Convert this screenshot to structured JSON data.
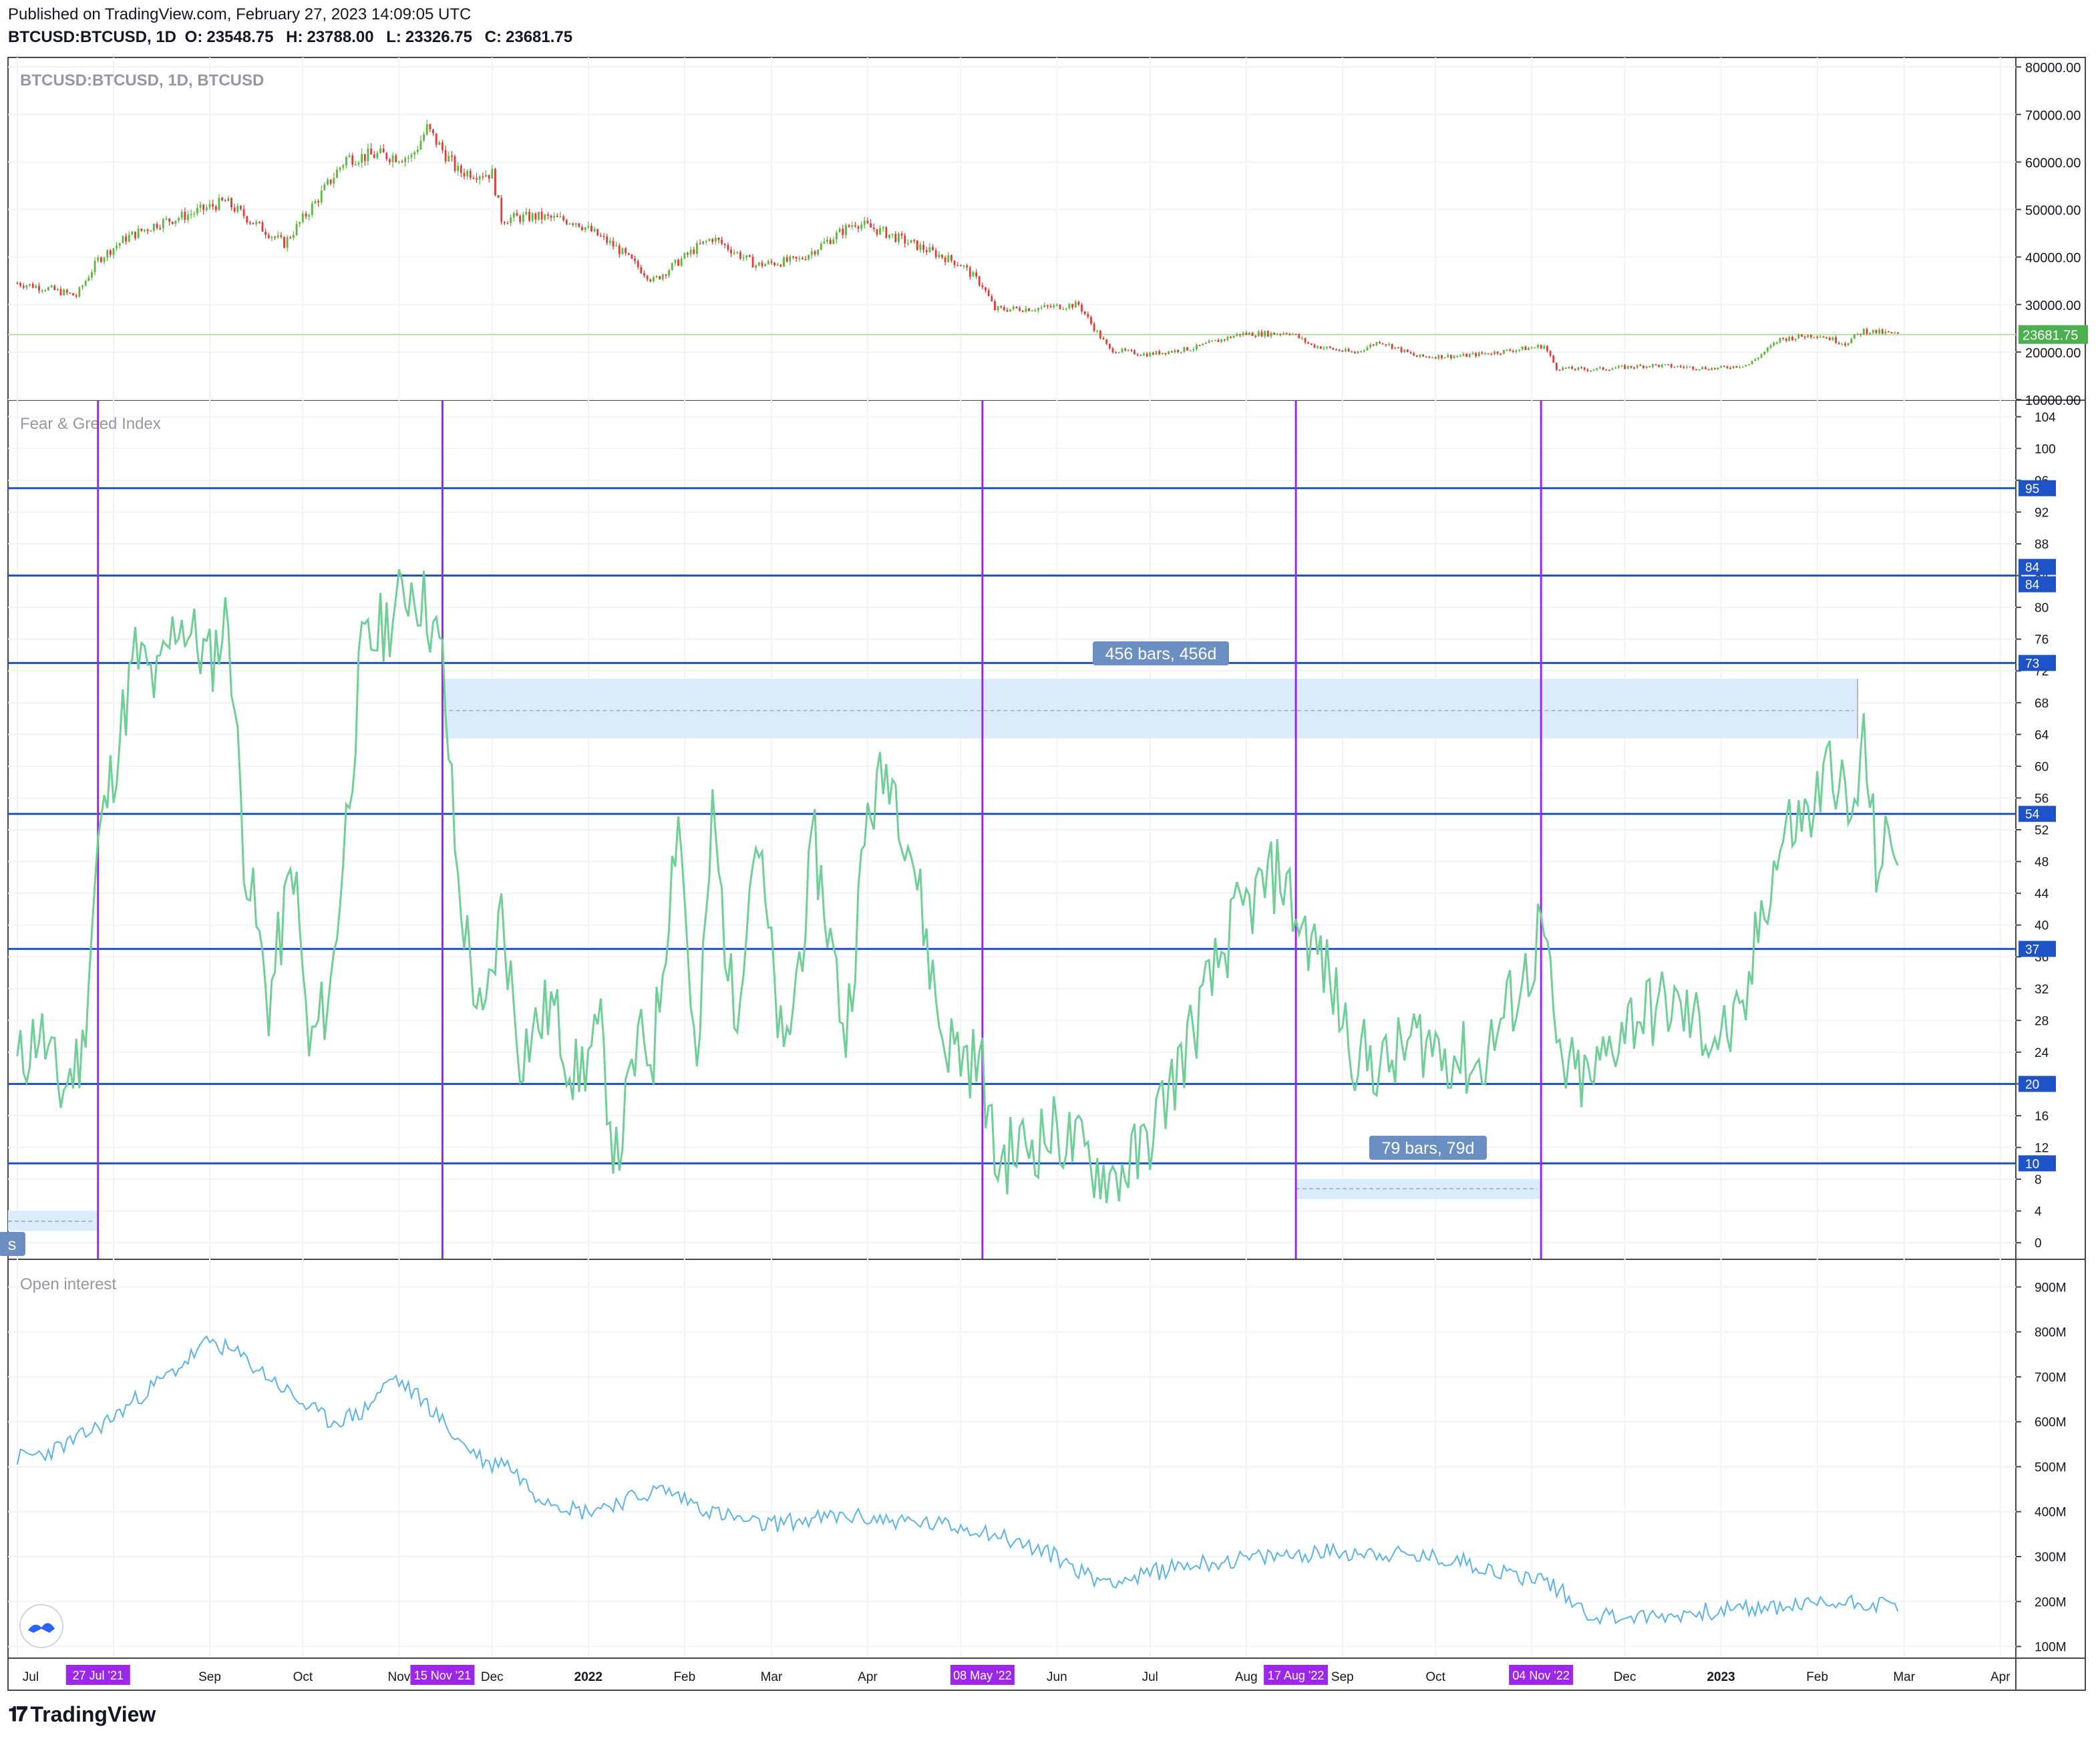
{
  "header": {
    "published": "Published on TradingView.com, February 27, 2023 14:09:05 UTC",
    "symbol": "BTCUSD:BTCUSD, 1D",
    "o_label": "O:",
    "o": "23548.75",
    "h_label": "H:",
    "h": "23788.00",
    "l_label": "L:",
    "l": "23326.75",
    "c_label": "C:",
    "c": "23681.75"
  },
  "footer": {
    "brand": "TradingView"
  },
  "colors": {
    "up": "#5cb838",
    "down": "#e53935",
    "fg": "#6fcf97",
    "oi": "#5ab4e8",
    "level": "#1e53c8",
    "vline": "#9c27e8",
    "range": "#dcebfb",
    "label": "#6b8fc2",
    "last": "#4caf50"
  },
  "chart_data": [
    {
      "type": "candlestick",
      "title": "BTCUSD:BTCUSD, 1D, BTCUSD",
      "last_price": "23681.75",
      "y_ticks": [
        "80000.00",
        "70000.00",
        "60000.00",
        "50000.00",
        "40000.00",
        "30000.00",
        "20000.00",
        "10000.00"
      ],
      "ylim": [
        10000,
        82000
      ],
      "x": [
        "2021-07-01",
        "2021-07-10",
        "2021-07-20",
        "2021-07-27",
        "2021-08-05",
        "2021-08-15",
        "2021-08-25",
        "2021-09-06",
        "2021-09-15",
        "2021-09-25",
        "2021-10-05",
        "2021-10-15",
        "2021-10-25",
        "2021-11-05",
        "2021-11-10",
        "2021-11-20",
        "2021-12-01",
        "2021-12-04",
        "2021-12-15",
        "2021-12-28",
        "2022-01-10",
        "2022-01-22",
        "2022-02-05",
        "2022-02-10",
        "2022-02-24",
        "2022-03-10",
        "2022-03-28",
        "2022-04-05",
        "2022-04-20",
        "2022-05-01",
        "2022-05-08",
        "2022-05-12",
        "2022-05-25",
        "2022-06-08",
        "2022-06-13",
        "2022-06-18",
        "2022-06-30",
        "2022-07-15",
        "2022-07-30",
        "2022-08-10",
        "2022-08-15",
        "2022-08-22",
        "2022-09-05",
        "2022-09-13",
        "2022-09-25",
        "2022-10-10",
        "2022-10-25",
        "2022-11-05",
        "2022-11-09",
        "2022-11-20",
        "2022-12-10",
        "2022-12-30",
        "2023-01-10",
        "2023-01-20",
        "2023-02-01",
        "2023-02-10",
        "2023-02-16",
        "2023-02-27"
      ],
      "close": [
        34500,
        33500,
        31800,
        39400,
        44000,
        47000,
        48900,
        51700,
        47300,
        42800,
        51500,
        60800,
        61500,
        61000,
        67000,
        58000,
        57500,
        48000,
        48500,
        47500,
        42000,
        35000,
        42000,
        44000,
        38300,
        39400,
        47300,
        45500,
        41500,
        38500,
        34000,
        29000,
        29200,
        30000,
        25000,
        20500,
        19500,
        20800,
        23800,
        23900,
        24200,
        21400,
        19800,
        22300,
        19000,
        19200,
        20300,
        21300,
        16600,
        16300,
        17200,
        16500,
        17400,
        22700,
        23700,
        21800,
        24500,
        23682
      ],
      "price_line": "23681.75"
    },
    {
      "type": "line",
      "title": "Fear & Greed Index",
      "y_ticks": [
        "104",
        "100",
        "96",
        "92",
        "88",
        "84",
        "80",
        "76",
        "72",
        "68",
        "64",
        "60",
        "56",
        "52",
        "48",
        "44",
        "40",
        "36",
        "32",
        "28",
        "24",
        "20",
        "16",
        "12",
        "8",
        "4",
        "0"
      ],
      "ylim": [
        -2,
        106
      ],
      "levels": [
        "95",
        "84",
        "84",
        "73",
        "54",
        "37",
        "20",
        "10"
      ],
      "x": [
        "2021-07-01",
        "2021-07-08",
        "2021-07-15",
        "2021-07-22",
        "2021-07-27",
        "2021-08-01",
        "2021-08-08",
        "2021-08-15",
        "2021-08-22",
        "2021-09-01",
        "2021-09-07",
        "2021-09-12",
        "2021-09-20",
        "2021-09-28",
        "2021-10-03",
        "2021-10-10",
        "2021-10-20",
        "2021-10-28",
        "2021-11-05",
        "2021-11-10",
        "2021-11-15",
        "2021-11-20",
        "2021-11-28",
        "2021-12-04",
        "2021-12-10",
        "2021-12-20",
        "2021-12-28",
        "2022-01-05",
        "2022-01-10",
        "2022-01-17",
        "2022-01-22",
        "2022-01-30",
        "2022-02-05",
        "2022-02-10",
        "2022-02-17",
        "2022-02-24",
        "2022-03-05",
        "2022-03-15",
        "2022-03-25",
        "2022-04-01",
        "2022-04-08",
        "2022-04-15",
        "2022-04-25",
        "2022-05-01",
        "2022-05-08",
        "2022-05-12",
        "2022-05-20",
        "2022-06-01",
        "2022-06-10",
        "2022-06-18",
        "2022-06-28",
        "2022-07-08",
        "2022-07-18",
        "2022-07-28",
        "2022-08-05",
        "2022-08-12",
        "2022-08-17",
        "2022-08-25",
        "2022-09-05",
        "2022-09-15",
        "2022-09-25",
        "2022-10-05",
        "2022-10-15",
        "2022-10-25",
        "2022-11-01",
        "2022-11-04",
        "2022-11-10",
        "2022-11-20",
        "2022-12-01",
        "2022-12-15",
        "2022-12-30",
        "2023-01-08",
        "2023-01-14",
        "2023-01-22",
        "2023-01-30",
        "2023-02-06",
        "2023-02-12",
        "2023-02-16",
        "2023-02-20",
        "2023-02-27"
      ],
      "values": [
        22,
        27,
        19,
        24,
        50,
        60,
        74,
        70,
        79,
        73,
        79,
        50,
        30,
        48,
        24,
        32,
        74,
        78,
        83,
        80,
        73,
        45,
        26,
        42,
        24,
        30,
        21,
        26,
        10,
        25,
        24,
        55,
        20,
        54,
        28,
        52,
        22,
        50,
        26,
        54,
        60,
        50,
        26,
        24,
        22,
        10,
        12,
        14,
        11,
        8,
        11,
        20,
        30,
        40,
        44,
        47,
        41,
        36,
        24,
        22,
        26,
        24,
        22,
        30,
        35,
        41,
        22,
        20,
        28,
        30,
        26,
        27,
        42,
        52,
        54,
        61,
        52,
        63,
        48,
        51
      ],
      "vlines": [
        "27 Jul '21",
        "15 Nov '21",
        "08 May '22",
        "17 Aug '22",
        "04 Nov '22"
      ],
      "annotations": [
        "456 bars, 456d",
        "79 bars, 79d",
        "s"
      ]
    },
    {
      "type": "line",
      "title": "Open interest",
      "y_ticks": [
        "900M",
        "800M",
        "700M",
        "600M",
        "500M",
        "400M",
        "300M",
        "200M",
        "100M"
      ],
      "ylim": [
        80,
        960
      ],
      "x": [
        "2021-07-01",
        "2021-07-10",
        "2021-07-20",
        "2021-08-01",
        "2021-08-10",
        "2021-08-20",
        "2021-09-01",
        "2021-09-10",
        "2021-09-20",
        "2021-10-01",
        "2021-10-10",
        "2021-10-20",
        "2021-10-30",
        "2021-11-10",
        "2021-11-20",
        "2021-12-01",
        "2021-12-04",
        "2021-12-15",
        "2021-12-30",
        "2022-01-10",
        "2022-01-25",
        "2022-02-10",
        "2022-02-25",
        "2022-03-10",
        "2022-03-25",
        "2022-04-10",
        "2022-04-25",
        "2022-05-08",
        "2022-05-20",
        "2022-06-01",
        "2022-06-13",
        "2022-06-25",
        "2022-07-10",
        "2022-07-25",
        "2022-08-10",
        "2022-08-25",
        "2022-09-10",
        "2022-09-25",
        "2022-10-10",
        "2022-10-25",
        "2022-11-05",
        "2022-11-09",
        "2022-11-20",
        "2022-12-10",
        "2022-12-30",
        "2023-01-15",
        "2023-02-01",
        "2023-02-15",
        "2023-02-27"
      ],
      "values": [
        520,
        530,
        560,
        610,
        660,
        710,
        780,
        750,
        700,
        640,
        600,
        620,
        700,
        640,
        560,
        500,
        520,
        440,
        400,
        420,
        450,
        400,
        370,
        380,
        390,
        380,
        370,
        360,
        330,
        300,
        250,
        250,
        280,
        290,
        300,
        310,
        310,
        300,
        290,
        260,
        250,
        230,
        170,
        165,
        180,
        185,
        195,
        200,
        190
      ]
    }
  ],
  "x_axis": {
    "ticks": [
      "Jul",
      "Sep",
      "Oct",
      "Nov",
      "Dec",
      "2022",
      "Feb",
      "Mar",
      "Apr",
      "Jun",
      "Jul",
      "Aug",
      "Sep",
      "Oct",
      "Dec",
      "2023",
      "Feb",
      "Mar",
      "Apr"
    ],
    "highlights": [
      "27 Jul '21",
      "15 Nov '21",
      "08 May '22",
      "17 Aug '22",
      "04 Nov '22"
    ]
  }
}
